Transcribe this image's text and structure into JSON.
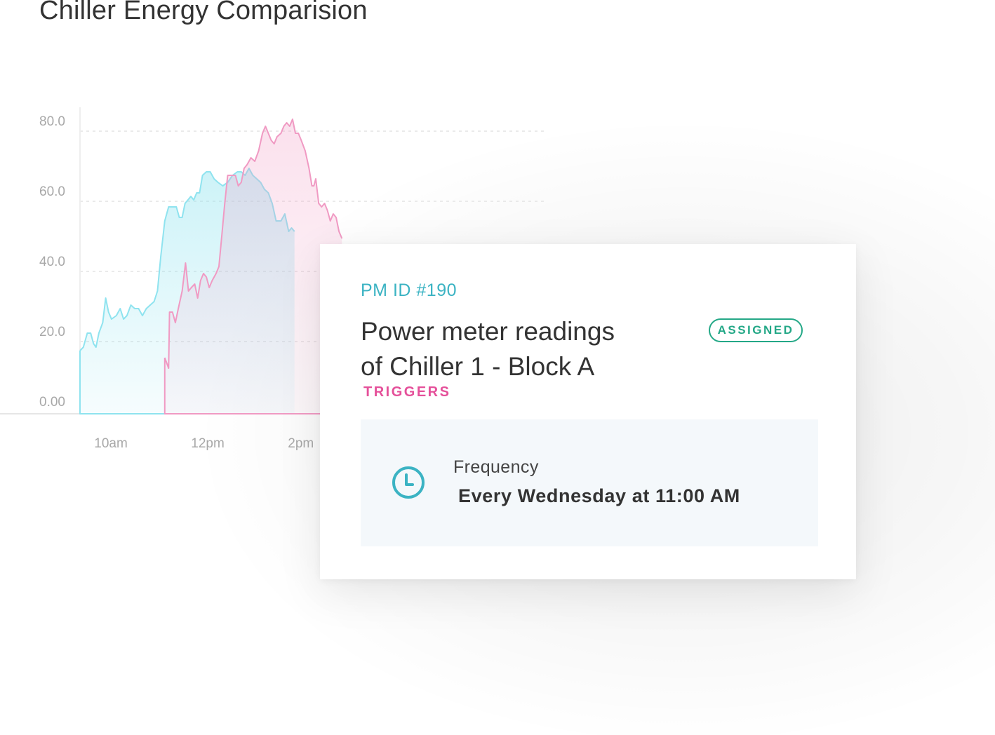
{
  "page": {
    "title": "Chiller Energy Comparision"
  },
  "chart_data": {
    "type": "area",
    "title": "Chiller Energy Comparision",
    "xlabel": "",
    "ylabel": "",
    "x_ticks": [
      {
        "label": "10am",
        "t": 10
      },
      {
        "label": "12pm",
        "t": 12
      },
      {
        "label": "2pm",
        "t": 14
      }
    ],
    "y_ticks": [
      "0.00",
      "20.0",
      "40.0",
      "60.0",
      "80.0"
    ],
    "xlim": [
      9.75,
      16.75
    ],
    "ylim": [
      0,
      80
    ],
    "grid": true,
    "series": [
      {
        "color": "#8fe3ef",
        "points": [
          [
            9.75,
            18
          ],
          [
            9.82,
            19
          ],
          [
            9.9,
            23
          ],
          [
            9.97,
            23
          ],
          [
            10.03,
            20
          ],
          [
            10.08,
            19
          ],
          [
            10.14,
            23
          ],
          [
            10.22,
            26
          ],
          [
            10.28,
            33
          ],
          [
            10.34,
            29
          ],
          [
            10.4,
            27
          ],
          [
            10.5,
            28
          ],
          [
            10.58,
            30
          ],
          [
            10.65,
            27
          ],
          [
            10.72,
            28
          ],
          [
            10.8,
            31
          ],
          [
            10.88,
            30
          ],
          [
            10.96,
            30
          ],
          [
            11.04,
            28
          ],
          [
            11.12,
            30
          ],
          [
            11.2,
            31
          ],
          [
            11.28,
            32
          ],
          [
            11.35,
            35
          ],
          [
            11.42,
            45
          ],
          [
            11.5,
            55
          ],
          [
            11.58,
            59
          ],
          [
            11.66,
            59
          ],
          [
            11.74,
            59
          ],
          [
            11.8,
            56
          ],
          [
            11.86,
            56
          ],
          [
            11.92,
            60
          ],
          [
            11.98,
            61
          ],
          [
            12.04,
            62
          ],
          [
            12.1,
            61
          ],
          [
            12.16,
            63
          ],
          [
            12.22,
            63
          ],
          [
            12.28,
            68
          ],
          [
            12.36,
            69
          ],
          [
            12.44,
            69
          ],
          [
            12.52,
            67
          ],
          [
            12.6,
            66
          ],
          [
            12.7,
            65
          ],
          [
            12.8,
            66
          ],
          [
            12.9,
            68
          ],
          [
            13.0,
            69
          ],
          [
            13.08,
            69
          ],
          [
            13.16,
            68
          ],
          [
            13.24,
            70
          ],
          [
            13.32,
            68
          ],
          [
            13.4,
            67
          ],
          [
            13.48,
            66
          ],
          [
            13.56,
            64
          ],
          [
            13.64,
            63
          ],
          [
            13.72,
            60
          ],
          [
            13.8,
            55
          ],
          [
            13.9,
            55
          ],
          [
            13.98,
            57
          ],
          [
            14.06,
            52
          ],
          [
            14.12,
            53
          ],
          [
            14.18,
            52
          ]
        ]
      },
      {
        "color": "#f09ac3",
        "points": [
          [
            11.5,
            16
          ],
          [
            11.58,
            13
          ],
          [
            11.6,
            29
          ],
          [
            11.66,
            29
          ],
          [
            11.72,
            26
          ],
          [
            11.78,
            30
          ],
          [
            11.86,
            35
          ],
          [
            11.93,
            43
          ],
          [
            11.99,
            35
          ],
          [
            12.05,
            36
          ],
          [
            12.12,
            37
          ],
          [
            12.18,
            33
          ],
          [
            12.24,
            38
          ],
          [
            12.3,
            40
          ],
          [
            12.36,
            39
          ],
          [
            12.42,
            36
          ],
          [
            12.48,
            38
          ],
          [
            12.56,
            40
          ],
          [
            12.62,
            42
          ],
          [
            12.68,
            51
          ],
          [
            12.74,
            60
          ],
          [
            12.8,
            68
          ],
          [
            12.88,
            68
          ],
          [
            12.96,
            68
          ],
          [
            13.02,
            65
          ],
          [
            13.08,
            66
          ],
          [
            13.14,
            70
          ],
          [
            13.2,
            71
          ],
          [
            13.28,
            73
          ],
          [
            13.36,
            72
          ],
          [
            13.44,
            75
          ],
          [
            13.52,
            80
          ],
          [
            13.58,
            82
          ],
          [
            13.64,
            80
          ],
          [
            13.7,
            78
          ],
          [
            13.76,
            77
          ],
          [
            13.82,
            79
          ],
          [
            13.9,
            80
          ],
          [
            13.96,
            82
          ],
          [
            14.02,
            83
          ],
          [
            14.08,
            82
          ],
          [
            14.14,
            84
          ],
          [
            14.2,
            80
          ],
          [
            14.26,
            80
          ],
          [
            14.32,
            78
          ],
          [
            14.4,
            75
          ],
          [
            14.48,
            70
          ],
          [
            14.54,
            65
          ],
          [
            14.58,
            65
          ],
          [
            14.62,
            67
          ],
          [
            14.68,
            60
          ],
          [
            14.74,
            59
          ],
          [
            14.8,
            60
          ],
          [
            14.86,
            58
          ],
          [
            14.92,
            55
          ],
          [
            14.98,
            57
          ],
          [
            15.04,
            56
          ],
          [
            15.1,
            52
          ],
          [
            15.16,
            50
          ]
        ]
      }
    ]
  },
  "card": {
    "pm_id": "PM ID #190",
    "title_line1": "Power meter readings",
    "title_line2": "of Chiller 1 - Block A",
    "status": "ASSIGNED",
    "section_label": "TRIGGERS",
    "frequency": {
      "icon": "clock-icon",
      "label": "Frequency",
      "value": "Every Wednesday at 11:00 AM"
    }
  },
  "colors": {
    "accent_teal": "#3bb3c3",
    "status_green": "#24a887",
    "trigger_pink": "#e5509a"
  }
}
